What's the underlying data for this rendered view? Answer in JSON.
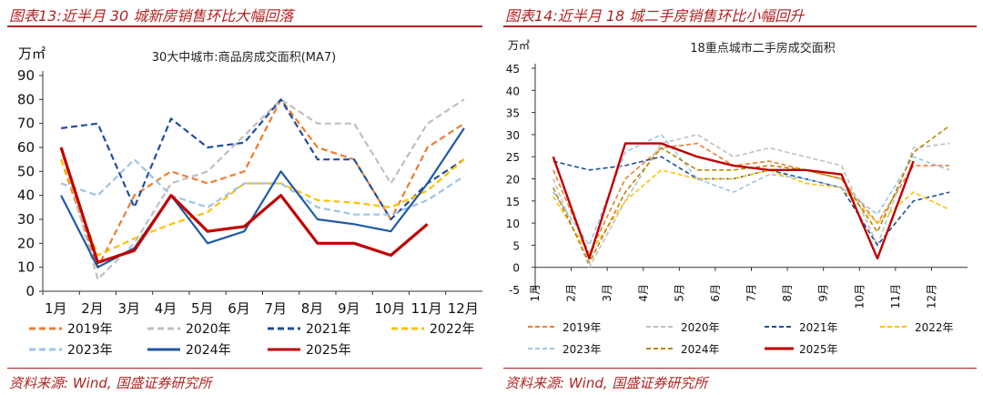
{
  "figures": [
    {
      "label": "图表13:近半月 30 城新房销售环比大幅回落",
      "source": "资料来源: Wind, 国盛证券研究所"
    },
    {
      "label": "图表14:近半月 18 城二手房销售环比小幅回升",
      "source": "资料来源: Wind, 国盛证券研究所"
    }
  ],
  "chart_data": [
    {
      "type": "line",
      "title": "30大中城市:商品房成交面积(MA7)",
      "ylabel": "万㎡",
      "ylim": [
        0,
        90
      ],
      "yticks": [
        "0",
        "10",
        "20",
        "30",
        "40",
        "50",
        "60",
        "70",
        "80",
        "90"
      ],
      "x": [
        "1月",
        "2月",
        "3月",
        "4月",
        "5月",
        "6月",
        "7月",
        "8月",
        "9月",
        "10月",
        "11月",
        "12月"
      ],
      "series": [
        {
          "name": "2019年",
          "color": "#ed7d31",
          "dash": "dash",
          "values": [
            55,
            10,
            40,
            50,
            45,
            50,
            80,
            60,
            55,
            30,
            60,
            70
          ]
        },
        {
          "name": "2020年",
          "color": "#bfbfbf",
          "dash": "dash",
          "values": [
            60,
            5,
            20,
            45,
            50,
            65,
            80,
            70,
            70,
            45,
            70,
            80
          ]
        },
        {
          "name": "2021年",
          "color": "#1f4e9c",
          "dash": "dash",
          "values": [
            68,
            70,
            35,
            72,
            60,
            62,
            80,
            55,
            55,
            30,
            45,
            55
          ]
        },
        {
          "name": "2022年",
          "color": "#ffc000",
          "dash": "dash",
          "values": [
            55,
            15,
            22,
            28,
            33,
            45,
            45,
            38,
            37,
            35,
            42,
            55
          ]
        },
        {
          "name": "2023年",
          "color": "#9dc3e6",
          "dash": "dash",
          "values": [
            45,
            40,
            55,
            40,
            35,
            45,
            45,
            35,
            32,
            32,
            38,
            48
          ]
        },
        {
          "name": "2024年",
          "color": "#1f5aa6",
          "dash": "solid",
          "values": [
            40,
            10,
            18,
            40,
            20,
            25,
            50,
            30,
            28,
            25,
            45,
            68
          ]
        },
        {
          "name": "2025年",
          "color": "#c00000",
          "dash": "solid",
          "values": [
            60,
            12,
            17,
            40,
            25,
            27,
            40,
            20,
            20,
            15,
            28,
            null
          ]
        }
      ]
    },
    {
      "type": "line",
      "title": "18重点城市二手房成交面积",
      "ylabel": "万㎡",
      "ylim": [
        -5,
        45
      ],
      "yticks": [
        "-5",
        "0",
        "5",
        "10",
        "15",
        "20",
        "25",
        "30",
        "35",
        "40",
        "45"
      ],
      "x": [
        "1月",
        "2月",
        "3月",
        "4月",
        "5月",
        "6月",
        "7月",
        "8月",
        "9月",
        "10月",
        "11月",
        "12月"
      ],
      "series": [
        {
          "name": "2019年",
          "color": "#ed7d31",
          "dash": "dash",
          "values": [
            22,
            3,
            20,
            27,
            28,
            23,
            24,
            22,
            20,
            10,
            23,
            23
          ]
        },
        {
          "name": "2020年",
          "color": "#bfbfbf",
          "dash": "dash",
          "values": [
            20,
            0,
            15,
            28,
            30,
            25,
            27,
            25,
            23,
            5,
            27,
            28
          ]
        },
        {
          "name": "2021年",
          "color": "#1f4e9c",
          "dash": "dash",
          "values": [
            24,
            22,
            23,
            25,
            20,
            20,
            22,
            20,
            18,
            5,
            15,
            17
          ]
        },
        {
          "name": "2022年",
          "color": "#ffc000",
          "dash": "dash",
          "values": [
            16,
            3,
            15,
            22,
            20,
            20,
            22,
            19,
            18,
            10,
            17,
            13
          ]
        },
        {
          "name": "2023年",
          "color": "#9dc3e6",
          "dash": "dash",
          "values": [
            17,
            5,
            26,
            30,
            20,
            17,
            21,
            20,
            18,
            12,
            25,
            22
          ]
        },
        {
          "name": "2024年",
          "color": "#b8860b",
          "dash": "dash",
          "values": [
            18,
            1,
            17,
            27,
            22,
            22,
            23,
            22,
            20,
            8,
            26,
            32
          ]
        },
        {
          "name": "2025年",
          "color": "#c00000",
          "dash": "solid",
          "values": [
            25,
            2,
            28,
            28,
            25,
            23,
            22,
            22,
            21,
            2,
            24,
            null
          ]
        }
      ]
    }
  ]
}
